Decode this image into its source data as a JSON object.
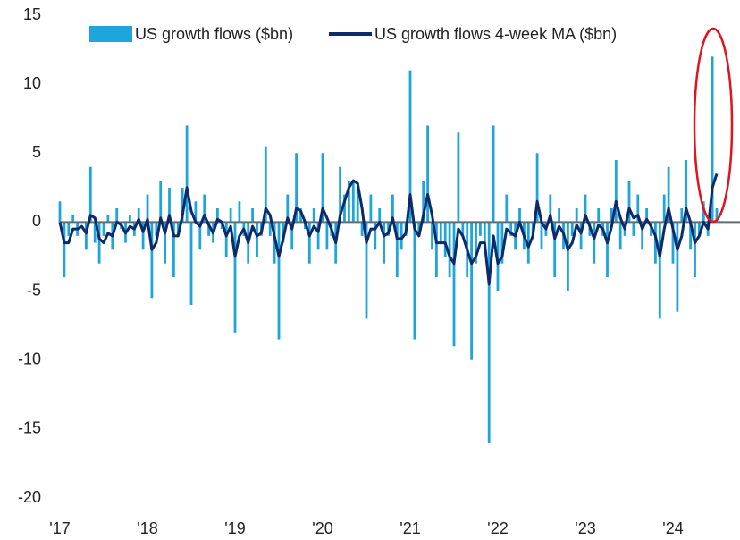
{
  "chart_data": {
    "type": "bar_line",
    "xlim": [
      2017,
      2024.75
    ],
    "xticks": [
      {
        "value": 2017,
        "label": "'17"
      },
      {
        "value": 2018,
        "label": "'18"
      },
      {
        "value": 2019,
        "label": "'19"
      },
      {
        "value": 2020,
        "label": "'20"
      },
      {
        "value": 2021,
        "label": "'21"
      },
      {
        "value": 2022,
        "label": "'22"
      },
      {
        "value": 2023,
        "label": "'23"
      },
      {
        "value": 2024,
        "label": "'24"
      }
    ],
    "ylim": [
      -20,
      15
    ],
    "yticks": [
      -20,
      -15,
      -10,
      -5,
      0,
      5,
      10,
      15
    ],
    "x": [
      2017.0,
      2017.05,
      2017.1,
      2017.15,
      2017.2,
      2017.25,
      2017.3,
      2017.35,
      2017.4,
      2017.45,
      2017.5,
      2017.55,
      2017.6,
      2017.65,
      2017.7,
      2017.75,
      2017.8,
      2017.85,
      2017.9,
      2017.95,
      2018.0,
      2018.05,
      2018.1,
      2018.15,
      2018.2,
      2018.25,
      2018.3,
      2018.35,
      2018.4,
      2018.45,
      2018.5,
      2018.55,
      2018.6,
      2018.65,
      2018.7,
      2018.75,
      2018.8,
      2018.85,
      2018.9,
      2018.95,
      2019.0,
      2019.05,
      2019.1,
      2019.15,
      2019.2,
      2019.25,
      2019.3,
      2019.35,
      2019.4,
      2019.45,
      2019.5,
      2019.55,
      2019.6,
      2019.65,
      2019.7,
      2019.75,
      2019.8,
      2019.85,
      2019.9,
      2019.95,
      2020.0,
      2020.05,
      2020.1,
      2020.15,
      2020.2,
      2020.25,
      2020.3,
      2020.35,
      2020.4,
      2020.45,
      2020.5,
      2020.55,
      2020.6,
      2020.65,
      2020.7,
      2020.75,
      2020.8,
      2020.85,
      2020.9,
      2020.95,
      2021.0,
      2021.05,
      2021.1,
      2021.15,
      2021.2,
      2021.25,
      2021.3,
      2021.35,
      2021.4,
      2021.45,
      2021.5,
      2021.55,
      2021.6,
      2021.65,
      2021.7,
      2021.75,
      2021.8,
      2021.85,
      2021.9,
      2021.95,
      2022.0,
      2022.05,
      2022.1,
      2022.15,
      2022.2,
      2022.25,
      2022.3,
      2022.35,
      2022.4,
      2022.45,
      2022.5,
      2022.55,
      2022.6,
      2022.65,
      2022.7,
      2022.75,
      2022.8,
      2022.85,
      2022.9,
      2022.95,
      2023.0,
      2023.05,
      2023.1,
      2023.15,
      2023.2,
      2023.25,
      2023.3,
      2023.35,
      2023.4,
      2023.45,
      2023.5,
      2023.55,
      2023.6,
      2023.65,
      2023.7,
      2023.75,
      2023.8,
      2023.85,
      2023.9,
      2023.95,
      2024.0,
      2024.05,
      2024.1,
      2024.15,
      2024.2,
      2024.25,
      2024.3,
      2024.35,
      2024.4,
      2024.45,
      2024.5
    ],
    "series": [
      {
        "name": "US growth flows ($bn)",
        "type": "bar",
        "color": "#1ea5dc",
        "values": [
          1.5,
          -4,
          -1,
          0.5,
          -1,
          0,
          -2,
          4,
          -1.5,
          -3,
          -1,
          0.5,
          -2,
          1,
          -0.5,
          -1.5,
          0.5,
          -1,
          1,
          -2,
          2,
          -5.5,
          -1,
          3,
          -3,
          2.5,
          -4,
          -1,
          2.5,
          7,
          -6,
          1.5,
          -2,
          2,
          -1,
          -1.5,
          1,
          -0.5,
          -2.5,
          1,
          -8,
          1.5,
          -1,
          -3,
          1,
          -2.5,
          -1,
          5.5,
          -1,
          -3,
          -8.5,
          -1.5,
          2,
          -2,
          5,
          1,
          -0.5,
          -3,
          1,
          -2,
          5,
          -2,
          -1,
          -3,
          4,
          2,
          3,
          3,
          2.5,
          -1,
          -7,
          2,
          -2,
          1,
          -3,
          -1,
          2,
          -4,
          -2,
          -1,
          11,
          -8.5,
          -1,
          3,
          7,
          -2,
          -4,
          -1.5,
          -2.5,
          -4,
          -9,
          6.5,
          -1,
          -4,
          -10,
          -3,
          -1,
          -2,
          -16,
          7,
          -5,
          -3,
          2,
          -1,
          -2,
          1,
          -2,
          -3,
          -1,
          5,
          -2,
          -1,
          2,
          -4,
          1,
          -2,
          -5,
          -1,
          1,
          -2,
          2,
          -1,
          -3,
          1,
          -1,
          -4,
          1,
          4.5,
          -2,
          -1,
          3,
          -1,
          2,
          -2,
          1,
          -1,
          -3,
          -7,
          2,
          4,
          -3,
          -6.5,
          1,
          4.5,
          -2,
          -4,
          -1,
          1.5,
          -1,
          12,
          1
        ]
      },
      {
        "name": "US growth flows 4-week MA ($bn)",
        "type": "line",
        "color": "#0d2a6b",
        "values": [
          0,
          -1.5,
          -1.5,
          -0.5,
          -0.5,
          -0.3,
          -0.8,
          0.5,
          0.3,
          -1.2,
          -1.5,
          -0.8,
          -1,
          0,
          -0.2,
          -0.8,
          -0.3,
          -0.5,
          0.2,
          -0.7,
          0.2,
          -2,
          -1.5,
          0.3,
          -0.8,
          0.5,
          -1,
          -1,
          0.5,
          2.5,
          0.8,
          0,
          -0.3,
          0.5,
          -0.2,
          -0.8,
          0.2,
          0,
          -1,
          -0.3,
          -2.5,
          -1,
          -0.5,
          -1.5,
          -0.3,
          -1,
          -0.8,
          1,
          0.5,
          -1,
          -2.5,
          -1.2,
          0.3,
          -0.5,
          1,
          0.8,
          0,
          -1,
          -0.3,
          -0.7,
          1,
          0.3,
          -0.5,
          -1.5,
          0.5,
          1.5,
          2.5,
          3,
          2.8,
          1,
          -1.5,
          -0.5,
          -0.5,
          0,
          -1,
          -0.8,
          0.3,
          -1.2,
          -1.2,
          -0.8,
          2,
          -0.5,
          -1,
          0.5,
          2,
          0.5,
          -1.5,
          -1.5,
          -1.5,
          -2.5,
          -3,
          -0.5,
          -1,
          -2,
          -3,
          -2.5,
          -1.5,
          -1.5,
          -4.5,
          -1,
          -3,
          -2.5,
          -0.5,
          -0.8,
          -1,
          0,
          -1,
          -1.8,
          -1,
          1.5,
          0,
          -0.5,
          0.5,
          -1.2,
          -0.3,
          -0.8,
          -2,
          -1.5,
          -0.2,
          -0.8,
          0.5,
          -0.3,
          -1.2,
          -0.2,
          -0.5,
          -1.5,
          -0.3,
          1.5,
          0.3,
          -0.5,
          1,
          0.3,
          0.5,
          -0.5,
          0.2,
          -0.3,
          -1,
          -2.5,
          -0.5,
          1,
          -0.5,
          -2,
          -1,
          1,
          0,
          -1.5,
          -1,
          0,
          -0.5,
          2.5,
          3.5
        ]
      }
    ]
  }
}
